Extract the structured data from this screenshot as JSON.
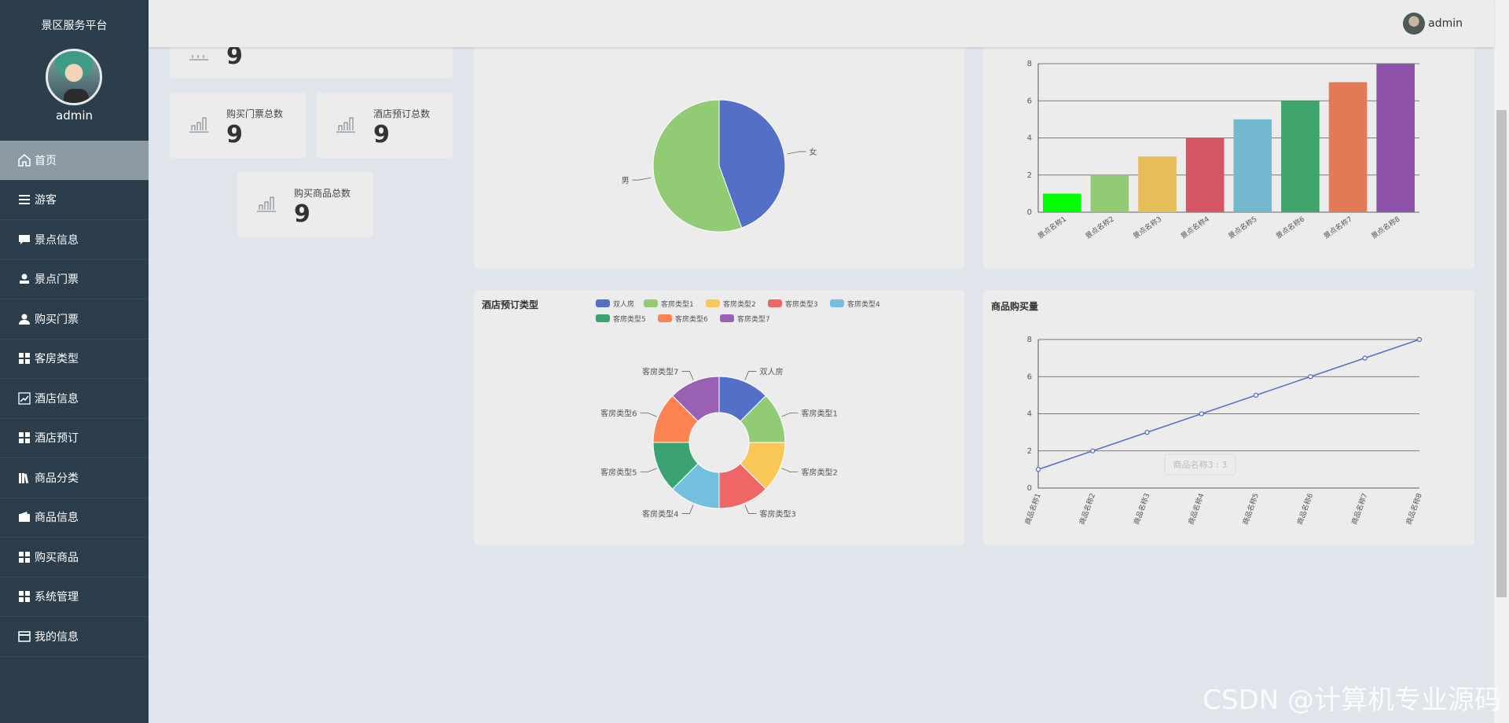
{
  "sidebar": {
    "brand": "景区服务平台",
    "username": "admin",
    "items": [
      {
        "label": "首页",
        "icon": "home-icon",
        "active": true
      },
      {
        "label": "游客",
        "icon": "list-icon"
      },
      {
        "label": "景点信息",
        "icon": "chat-icon"
      },
      {
        "label": "景点门票",
        "icon": "stamp-icon"
      },
      {
        "label": "购买门票",
        "icon": "user-icon"
      },
      {
        "label": "客房类型",
        "icon": "grid-icon"
      },
      {
        "label": "酒店信息",
        "icon": "trend-icon"
      },
      {
        "label": "酒店预订",
        "icon": "grid-icon"
      },
      {
        "label": "商品分类",
        "icon": "library-icon"
      },
      {
        "label": "商品信息",
        "icon": "wallet-icon"
      },
      {
        "label": "购买商品",
        "icon": "grid-icon"
      },
      {
        "label": "系统管理",
        "icon": "grid-icon"
      },
      {
        "label": "我的信息",
        "icon": "card-icon"
      }
    ]
  },
  "topbar": {
    "username": "admin"
  },
  "stats": {
    "first_value": "9",
    "ticket": {
      "label": "购买门票总数",
      "value": "9"
    },
    "hotel": {
      "label": "酒店预订总数",
      "value": "9"
    },
    "goods": {
      "label": "购买商品总数",
      "value": "9"
    }
  },
  "chart_data": [
    {
      "type": "pie",
      "slices": [
        {
          "label": "女",
          "value": 4,
          "color": "#5470c6"
        },
        {
          "label": "男",
          "value": 5,
          "color": "#91cc75"
        }
      ]
    },
    {
      "type": "bar",
      "categories": [
        "景点名称1",
        "景点名称2",
        "景点名称3",
        "景点名称4",
        "景点名称5",
        "景点名称6",
        "景点名称7",
        "景点名称8"
      ],
      "values": [
        1,
        2,
        3,
        4,
        5,
        6,
        7,
        8
      ],
      "colors": [
        "#00ff00",
        "#91cc75",
        "#e5bd5a",
        "#d45563",
        "#73b8cf",
        "#3fa46b",
        "#e27a55",
        "#8e52ab"
      ],
      "ylim": [
        0,
        8
      ],
      "yticks": [
        0,
        2,
        4,
        6,
        8
      ]
    },
    {
      "type": "pie",
      "title": "酒店预订类型",
      "legend_position": "top",
      "slices": [
        {
          "label": "双人房",
          "value": 1,
          "color": "#5470c6"
        },
        {
          "label": "客房类型1",
          "value": 1,
          "color": "#91cc75"
        },
        {
          "label": "客房类型2",
          "value": 1,
          "color": "#fac858"
        },
        {
          "label": "客房类型3",
          "value": 1,
          "color": "#ee6666"
        },
        {
          "label": "客房类型4",
          "value": 1,
          "color": "#73c0de"
        },
        {
          "label": "客房类型5",
          "value": 1,
          "color": "#3ba272"
        },
        {
          "label": "客房类型6",
          "value": 1,
          "color": "#fc8452"
        },
        {
          "label": "客房类型7",
          "value": 1,
          "color": "#9a60b4"
        }
      ]
    },
    {
      "type": "line",
      "title": "商品购买量",
      "categories": [
        "商品名称1",
        "商品名称2",
        "商品名称3",
        "商品名称4",
        "商品名称5",
        "商品名称6",
        "商品名称7",
        "商品名称8"
      ],
      "values": [
        1,
        2,
        3,
        4,
        5,
        6,
        7,
        8
      ],
      "ylim": [
        0,
        8
      ],
      "yticks": [
        0,
        2,
        4,
        6,
        8
      ],
      "tooltip": "商品名称3 : 3",
      "color": "#5470c6"
    }
  ],
  "watermark": "CSDN @计算机专业源码"
}
